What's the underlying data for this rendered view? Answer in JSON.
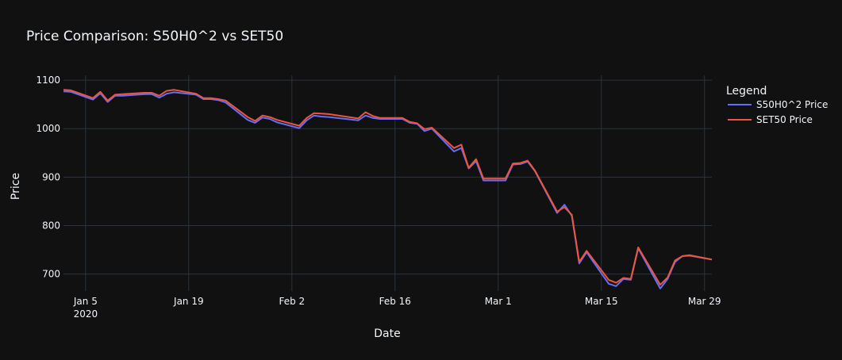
{
  "chart_data": {
    "type": "line",
    "title": "Price Comparison: S50H0^2 vs SET50",
    "xlabel": "Date",
    "ylabel": "Price",
    "x_tick_labels": [
      "Jan 5",
      "Jan 19",
      "Feb 2",
      "Feb 16",
      "Mar 1",
      "Mar 15",
      "Mar 29"
    ],
    "x_tick_dates": [
      "2020-01-05",
      "2020-01-19",
      "2020-02-02",
      "2020-02-16",
      "2020-03-01",
      "2020-03-15",
      "2020-03-29"
    ],
    "x_year_label": "2020",
    "y_ticks": [
      700,
      800,
      900,
      1000,
      1100
    ],
    "xlim": [
      "2020-01-02",
      "2020-03-30"
    ],
    "ylim": [
      665,
      1110
    ],
    "grid": true,
    "legend": {
      "title": "Legend",
      "position": "top-right"
    },
    "x": [
      "2020-01-02",
      "2020-01-03",
      "2020-01-06",
      "2020-01-07",
      "2020-01-08",
      "2020-01-09",
      "2020-01-10",
      "2020-01-13",
      "2020-01-14",
      "2020-01-15",
      "2020-01-16",
      "2020-01-17",
      "2020-01-20",
      "2020-01-21",
      "2020-01-22",
      "2020-01-23",
      "2020-01-24",
      "2020-01-27",
      "2020-01-28",
      "2020-01-29",
      "2020-01-30",
      "2020-01-31",
      "2020-02-03",
      "2020-02-04",
      "2020-02-05",
      "2020-02-06",
      "2020-02-07",
      "2020-02-11",
      "2020-02-12",
      "2020-02-13",
      "2020-02-14",
      "2020-02-17",
      "2020-02-18",
      "2020-02-19",
      "2020-02-20",
      "2020-02-21",
      "2020-02-24",
      "2020-02-25",
      "2020-02-26",
      "2020-02-27",
      "2020-02-28",
      "2020-03-02",
      "2020-03-03",
      "2020-03-04",
      "2020-03-05",
      "2020-03-06",
      "2020-03-09",
      "2020-03-10",
      "2020-03-11",
      "2020-03-12",
      "2020-03-13",
      "2020-03-16",
      "2020-03-17",
      "2020-03-18",
      "2020-03-19",
      "2020-03-20",
      "2020-03-23",
      "2020-03-24",
      "2020-03-25",
      "2020-03-26",
      "2020-03-27",
      "2020-03-30"
    ],
    "series": [
      {
        "name": "S50H0^2 Price",
        "color": "#636efa",
        "values": [
          1077,
          1076,
          1060,
          1073,
          1055,
          1068,
          1068,
          1071,
          1071,
          1064,
          1072,
          1075,
          1070,
          1061,
          1061,
          1059,
          1054,
          1018,
          1012,
          1023,
          1020,
          1013,
          1001,
          1017,
          1027,
          1025,
          1024,
          1017,
          1027,
          1022,
          1020,
          1020,
          1012,
          1010,
          995,
          1000,
          953,
          960,
          918,
          933,
          893,
          893,
          926,
          927,
          932,
          912,
          826,
          843,
          820,
          722,
          745,
          680,
          675,
          690,
          688,
          753,
          670,
          690,
          725,
          737,
          738,
          730
        ]
      },
      {
        "name": "SET50 Price",
        "color": "#ef553b",
        "values": [
          1080,
          1079,
          1063,
          1076,
          1058,
          1070,
          1071,
          1074,
          1074,
          1068,
          1078,
          1080,
          1072,
          1063,
          1063,
          1061,
          1058,
          1024,
          1016,
          1027,
          1024,
          1018,
          1006,
          1022,
          1032,
          1031,
          1030,
          1021,
          1034,
          1026,
          1022,
          1022,
          1014,
          1011,
          999,
          1002,
          960,
          967,
          919,
          937,
          897,
          897,
          928,
          929,
          934,
          913,
          829,
          838,
          822,
          725,
          748,
          688,
          682,
          692,
          690,
          755,
          678,
          693,
          728,
          737,
          739,
          730
        ]
      }
    ]
  }
}
